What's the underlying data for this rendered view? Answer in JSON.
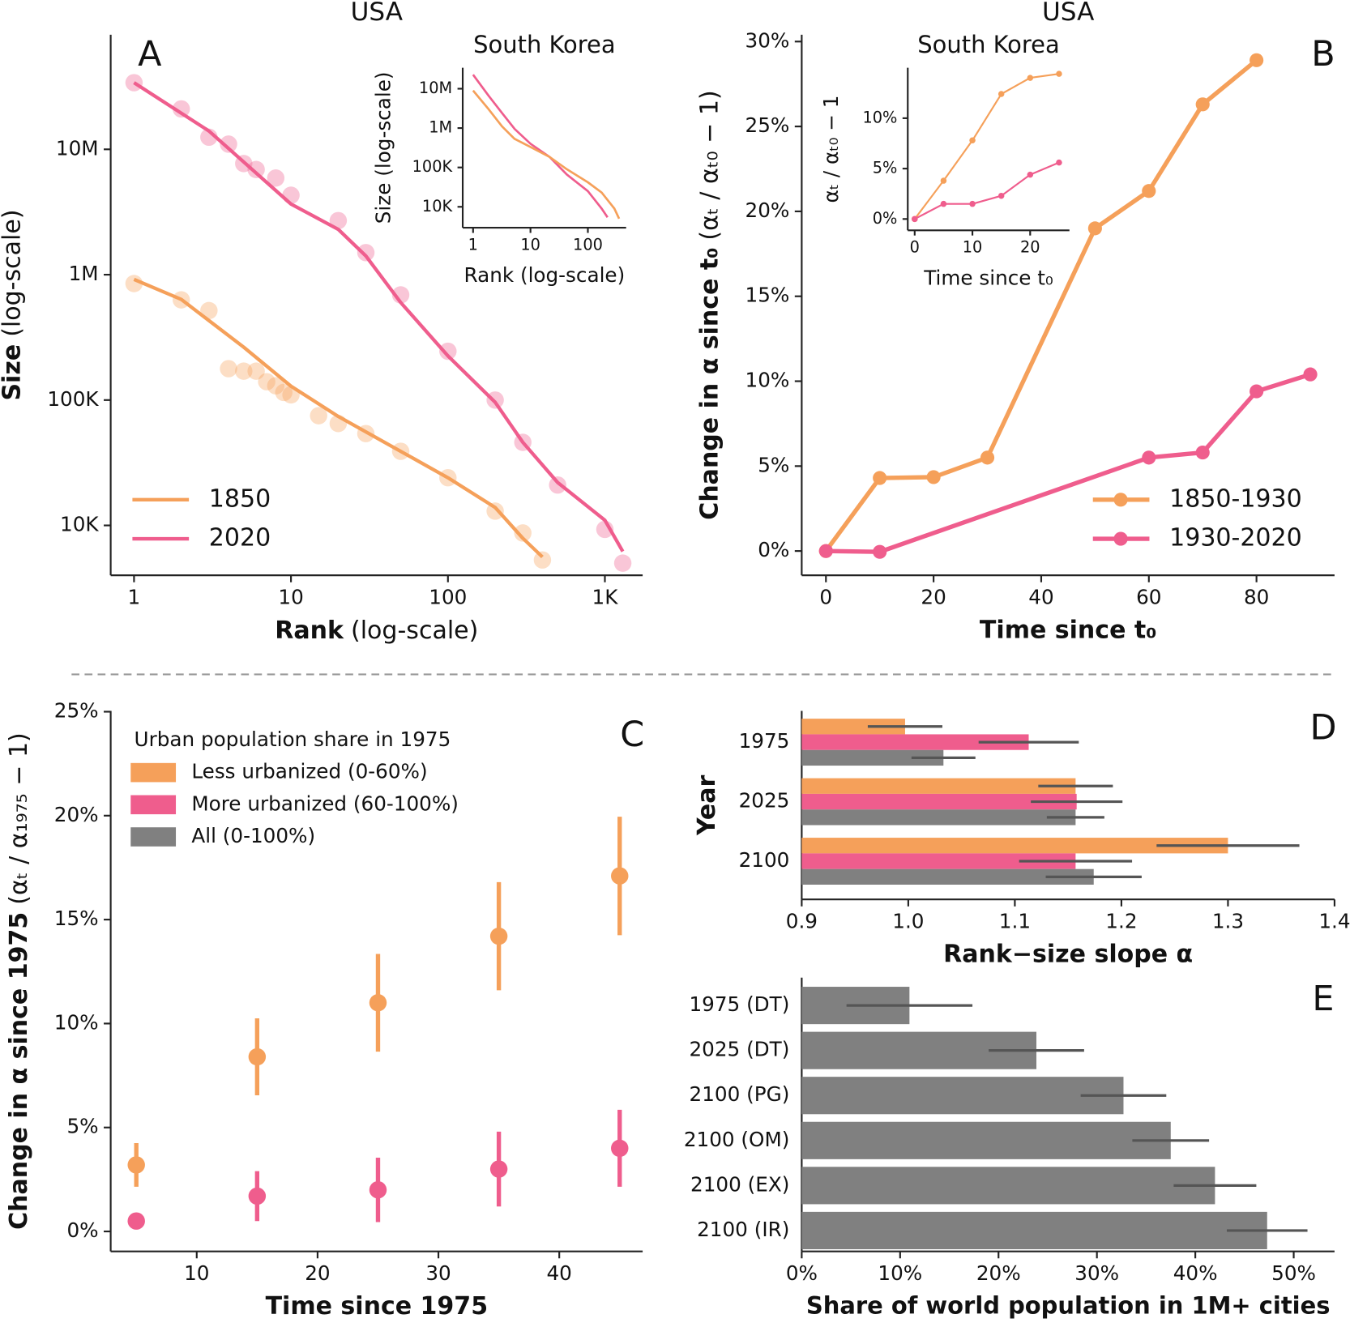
{
  "chart_data": [
    {
      "type": "line",
      "title": "USA",
      "panel": "A",
      "xlabel": [
        "Rank",
        "(log-scale)"
      ],
      "ylabel": [
        "Size",
        "(log-scale)"
      ],
      "xscale": "log",
      "yscale": "log",
      "xlim": [
        0.71,
        1740
      ],
      "ylim": [
        4000,
        82000000
      ],
      "xticks": [
        1,
        10,
        100,
        {
          "value": 1000,
          "label": "1K"
        }
      ],
      "yticks": [
        {
          "value": 10000,
          "label": "10K"
        },
        {
          "value": 100000,
          "label": "100K"
        },
        {
          "value": 1000000,
          "label": "1M"
        },
        {
          "value": 10000000,
          "label": "10M"
        }
      ],
      "legend": "lower left",
      "series": [
        {
          "name": "1850",
          "color": "#f5a05a",
          "x": [
            1,
            2,
            5,
            10,
            20,
            50,
            100,
            200,
            300,
            400
          ],
          "values": [
            917000,
            635000,
            264000,
            129000,
            74000,
            39000,
            24000,
            13900,
            7900,
            5600
          ],
          "scatter": {
            "x": [
              1,
              2,
              3,
              4,
              5,
              6,
              7,
              8,
              9,
              10,
              15,
              20,
              30,
              50,
              100,
              200,
              300,
              400
            ],
            "values": [
              850000,
              630000,
              517000,
              178000,
              170000,
              170000,
              140000,
              130000,
              115000,
              110000,
              75000,
              65000,
              54000,
              39000,
              24000,
              13000,
              8700,
              5300
            ]
          }
        },
        {
          "name": "2020",
          "color": "#ef5d8d",
          "x": [
            1,
            3,
            10,
            20,
            30,
            50,
            100,
            200,
            300,
            500,
            1000,
            1300
          ],
          "values": [
            34000000,
            14000000,
            3660000,
            2300000,
            1410000,
            600000,
            225000,
            96000,
            46000,
            22000,
            11000,
            6200
          ],
          "scatter": {
            "x": [
              1,
              2,
              3,
              4,
              5,
              6,
              8,
              10,
              20,
              30,
              50,
              100,
              200,
              300,
              500,
              1000,
              1300
            ],
            "values": [
              34000000,
              21000000,
              12500000,
              11000000,
              7700000,
              6900000,
              5900000,
              4300000,
              2700000,
              1500000,
              690000,
              245000,
              100000,
              46000,
              21000,
              9300,
              5000
            ]
          }
        }
      ]
    },
    {
      "type": "line",
      "title": "South Korea",
      "xlabel": "Rank (log-scale)",
      "ylabel": "Size (log-scale)",
      "xscale": "log",
      "yscale": "log",
      "xlim": [
        0.66,
        464
      ],
      "ylim": [
        2950,
        34000000
      ],
      "xticks": [
        1,
        10,
        100
      ],
      "yticks": [
        {
          "value": 10000,
          "label": "10K"
        },
        {
          "value": 100000,
          "label": "100K"
        },
        {
          "value": 1000000,
          "label": "1M"
        },
        {
          "value": 10000000,
          "label": "10M"
        }
      ],
      "series": [
        {
          "color": "#ef5d8d",
          "x": [
            1,
            1.87,
            3.2,
            5.3,
            10,
            21.5,
            43,
            100,
            174,
            220
          ],
          "values": [
            22700000,
            6600000,
            2400000,
            950000,
            400000,
            185000,
            66000,
            25000,
            9000,
            5400
          ]
        },
        {
          "color": "#f5a05a",
          "x": [
            1,
            1.87,
            3.2,
            5.3,
            10,
            21.5,
            43,
            100,
            174,
            290,
            350
          ],
          "values": [
            9000000,
            3000000,
            1100000,
            530000,
            330000,
            185000,
            90000,
            42000,
            23000,
            9000,
            5000
          ]
        }
      ]
    },
    {
      "type": "line",
      "title": "USA",
      "panel": "B",
      "xlabel": "Time since t₀",
      "ylabel": [
        "Change in α since t₀",
        "(αₜ / αₜ₀ − 1)"
      ],
      "xlim": [
        -4.5,
        94.5
      ],
      "ylim": [
        -1.43,
        30.4
      ],
      "xticks": [
        0,
        20,
        40,
        60,
        80
      ],
      "yticks": [
        {
          "value": 0,
          "label": "0%"
        },
        {
          "value": 5,
          "label": "5%"
        },
        {
          "value": 10,
          "label": "10%"
        },
        {
          "value": 15,
          "label": "15%"
        },
        {
          "value": 20,
          "label": "20%"
        },
        {
          "value": 25,
          "label": "25%"
        },
        {
          "value": 30,
          "label": "30%"
        }
      ],
      "markers": true,
      "legend": "lower right",
      "series": [
        {
          "name": "1850-1930",
          "color": "#f5a05a",
          "x": [
            0,
            10,
            20,
            30,
            50,
            60,
            70,
            80
          ],
          "values": [
            0,
            4.3,
            4.35,
            5.5,
            19.0,
            21.2,
            26.3,
            28.9
          ]
        },
        {
          "name": "1930-2020",
          "color": "#ef5d8d",
          "x": [
            0,
            10,
            60,
            70,
            80,
            90
          ],
          "values": [
            0,
            -0.05,
            5.5,
            5.8,
            9.4,
            10.4
          ]
        }
      ]
    },
    {
      "type": "line",
      "title": "South Korea",
      "xlabel": "Time since t₀",
      "ylabel": "αₜ / αₜ₀ − 1",
      "xlim": [
        -1.2,
        26.8
      ],
      "ylim": [
        -1.12,
        15
      ],
      "xticks": [
        0,
        10,
        20
      ],
      "yticks": [
        {
          "value": 0,
          "label": "0%"
        },
        {
          "value": 5,
          "label": "5%"
        },
        {
          "value": 10,
          "label": "10%"
        }
      ],
      "markers": true,
      "series": [
        {
          "color": "#f5a05a",
          "x": [
            0,
            5,
            10,
            15,
            20,
            25
          ],
          "values": [
            0,
            3.8,
            7.8,
            12.4,
            14.0,
            14.4
          ]
        },
        {
          "color": "#ef5d8d",
          "x": [
            0,
            5,
            10,
            15,
            20,
            25
          ],
          "values": [
            0,
            1.5,
            1.5,
            2.3,
            4.4,
            5.6
          ]
        }
      ]
    },
    {
      "type": "errorbar",
      "panel": "C",
      "xlabel": "Time since 1975",
      "ylabel": [
        "Change in α since 1975",
        "(αₜ / α₁₉₇₅ − 1)"
      ],
      "xlim": [
        2.88,
        46.9
      ],
      "ylim": [
        -0.96,
        25.04
      ],
      "xticks": [
        10,
        20,
        30,
        40
      ],
      "yticks": [
        {
          "value": 0,
          "label": "0%"
        },
        {
          "value": 5,
          "label": "5%"
        },
        {
          "value": 10,
          "label": "10%"
        },
        {
          "value": 15,
          "label": "15%"
        },
        {
          "value": 20,
          "label": "20%"
        },
        {
          "value": 25,
          "label": "25%"
        }
      ],
      "x": [
        5,
        15,
        25,
        35,
        45
      ],
      "series": [
        {
          "color": "#f5a05a",
          "values": [
            3.2,
            8.4,
            11.0,
            14.2,
            17.1
          ],
          "errors": [
            1.05,
            1.85,
            2.35,
            2.6,
            2.85
          ]
        },
        {
          "color": "#ef5d8d",
          "values": [
            0.5,
            1.7,
            2.0,
            3.0,
            4.0
          ],
          "errors": [
            0.4,
            1.2,
            1.55,
            1.8,
            1.85
          ]
        }
      ]
    },
    {
      "type": "barh",
      "panel": "D",
      "xlabel": "Rank−size slope α",
      "ylabel": "Year",
      "categories": [
        "1975",
        "2025",
        "2100"
      ],
      "xlim": [
        0.9,
        1.4
      ],
      "xticks": [
        0.9,
        {
          "value": 1,
          "label": "1.0"
        },
        1.1,
        1.2,
        1.3,
        1.4
      ],
      "legend_title": "Urban population share in 1975",
      "series": [
        {
          "name": "Less urbanized (0-60%)",
          "color": "#f5a05a",
          "values": [
            0.997,
            1.157,
            1.3
          ],
          "errors": [
            0.035,
            0.035,
            0.067
          ]
        },
        {
          "name": "More urbanized (60-100%)",
          "color": "#ef5d8d",
          "values": [
            1.113,
            1.158,
            1.157
          ],
          "errors": [
            0.047,
            0.043,
            0.053
          ]
        },
        {
          "name": "All (0-100%)",
          "color": "#808080",
          "values": [
            1.033,
            1.157,
            1.174
          ],
          "errors": [
            0.03,
            0.027,
            0.045
          ]
        }
      ]
    },
    {
      "type": "barh",
      "panel": "E",
      "xlabel": "Share of world population in 1M+ cities",
      "categories": [
        "1975 (DT)",
        "2025 (DT)",
        "2100 (PG)",
        "2100 (OM)",
        "2100 (EX)",
        "2100 (IR)"
      ],
      "xlim": [
        0,
        54.15
      ],
      "xticks": [
        {
          "value": 0,
          "label": "0%"
        },
        {
          "value": 10,
          "label": "10%"
        },
        {
          "value": 20,
          "label": "20%"
        },
        {
          "value": 30,
          "label": "30%"
        },
        {
          "value": 40,
          "label": "40%"
        },
        {
          "value": 50,
          "label": "50%"
        }
      ],
      "series": [
        {
          "color": "#808080",
          "values": [
            10.95,
            23.85,
            32.7,
            37.5,
            42.0,
            47.3
          ],
          "errors": [
            6.4,
            4.85,
            4.35,
            3.9,
            4.2,
            4.1
          ]
        }
      ]
    }
  ]
}
